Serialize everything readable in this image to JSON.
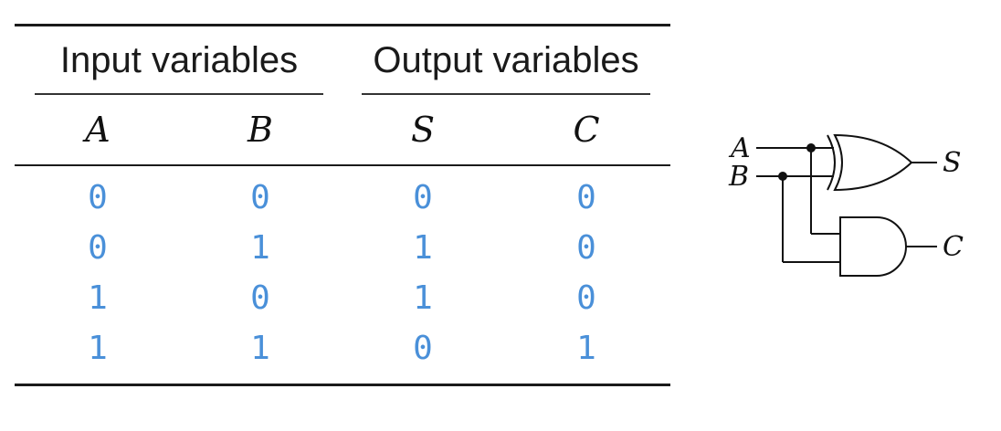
{
  "table": {
    "groups": [
      "Input variables",
      "Output variables"
    ],
    "columns": [
      "A",
      "B",
      "S",
      "C"
    ],
    "rows": [
      [
        "0",
        "0",
        "0",
        "0"
      ],
      [
        "0",
        "1",
        "1",
        "0"
      ],
      [
        "1",
        "0",
        "1",
        "0"
      ],
      [
        "1",
        "1",
        "0",
        "1"
      ]
    ]
  },
  "circuit": {
    "inputs": [
      "A",
      "B"
    ],
    "outputs": [
      "S",
      "C"
    ],
    "gates": [
      "xor-gate",
      "and-gate"
    ]
  },
  "colors": {
    "values": "#4a90d9",
    "rules": "#1a1a1a"
  }
}
